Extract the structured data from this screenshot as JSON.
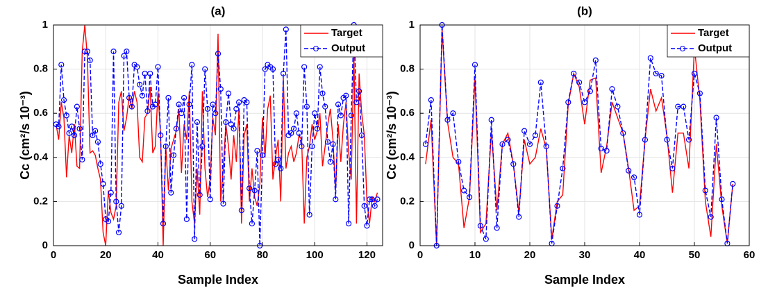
{
  "chart_data": [
    {
      "type": "line",
      "title": "(a)",
      "xlabel": "Sample Index",
      "ylabel": "Cc (cm²/s 10⁻³)",
      "x": [
        1,
        2,
        3,
        4,
        5,
        6,
        7,
        8,
        9,
        10,
        11,
        12,
        13,
        14,
        15,
        16,
        17,
        18,
        19,
        20,
        21,
        22,
        23,
        24,
        25,
        26,
        27,
        28,
        29,
        30,
        31,
        32,
        33,
        34,
        35,
        36,
        37,
        38,
        39,
        40,
        41,
        42,
        43,
        44,
        45,
        46,
        47,
        48,
        49,
        50,
        51,
        52,
        53,
        54,
        55,
        56,
        57,
        58,
        59,
        60,
        61,
        62,
        63,
        64,
        65,
        66,
        67,
        68,
        69,
        70,
        71,
        72,
        73,
        74,
        75,
        76,
        77,
        78,
        79,
        80,
        81,
        82,
        83,
        84,
        85,
        86,
        87,
        88,
        89,
        90,
        91,
        92,
        93,
        94,
        95,
        96,
        97,
        98,
        99,
        100,
        101,
        102,
        103,
        104,
        105,
        106,
        107,
        108,
        109,
        110,
        111,
        112,
        113,
        114,
        115,
        116,
        117,
        118,
        119,
        120,
        121,
        122,
        123,
        124
      ],
      "series": [
        {
          "name": "Target",
          "color": "#ff0000",
          "values": [
            0.55,
            0.48,
            0.65,
            0.58,
            0.31,
            0.5,
            0.42,
            0.55,
            0.36,
            0.35,
            0.88,
            1.0,
            0.85,
            0.42,
            0.43,
            0.41,
            0.35,
            0.3,
            0.06,
            0.0,
            0.25,
            0.15,
            0.12,
            0.18,
            0.65,
            0.7,
            0.52,
            0.58,
            0.68,
            0.62,
            0.7,
            0.65,
            0.4,
            0.38,
            0.58,
            0.6,
            0.72,
            0.42,
            0.45,
            0.7,
            0.5,
            0.0,
            0.45,
            0.25,
            0.44,
            0.48,
            0.52,
            0.62,
            0.33,
            0.55,
            0.48,
            0.7,
            0.2,
            0.1,
            0.35,
            0.14,
            0.7,
            0.35,
            0.22,
            0.3,
            0.58,
            0.5,
            0.96,
            0.2,
            0.35,
            0.55,
            0.45,
            0.3,
            0.5,
            0.38,
            0.62,
            0.1,
            0.5,
            0.55,
            0.2,
            0.35,
            0.22,
            0.18,
            0.28,
            0.58,
            0.4,
            0.62,
            0.68,
            0.3,
            0.4,
            0.48,
            0.2,
            0.76,
            0.35,
            0.42,
            0.45,
            0.38,
            0.42,
            0.5,
            0.48,
            0.1,
            0.4,
            0.45,
            0.55,
            0.48,
            0.52,
            0.6,
            0.36,
            0.45,
            0.55,
            0.62,
            0.48,
            0.25,
            0.55,
            0.38,
            0.55,
            0.65,
            0.42,
            0.3,
            0.88,
            0.1,
            0.78,
            0.6,
            0.5,
            0.2,
            0.1,
            0.22,
            0.2,
            0.24
          ]
        },
        {
          "name": "Output",
          "color": "#0000ff",
          "values": [
            0.55,
            0.54,
            0.82,
            0.66,
            0.59,
            0.51,
            0.54,
            0.5,
            0.63,
            0.53,
            0.39,
            0.88,
            0.88,
            0.84,
            0.5,
            0.52,
            0.47,
            0.37,
            0.28,
            0.12,
            0.11,
            0.24,
            0.88,
            0.2,
            0.06,
            0.18,
            0.86,
            0.88,
            0.67,
            0.63,
            0.82,
            0.81,
            0.73,
            0.68,
            0.78,
            0.61,
            0.78,
            0.63,
            0.64,
            0.81,
            0.5,
            0.1,
            0.45,
            0.67,
            0.24,
            0.41,
            0.53,
            0.64,
            0.6,
            0.67,
            0.12,
            0.64,
            0.82,
            0.03,
            0.56,
            0.23,
            0.45,
            0.8,
            0.62,
            0.21,
            0.64,
            0.6,
            0.87,
            0.71,
            0.19,
            0.56,
            0.69,
            0.55,
            0.53,
            0.62,
            0.65,
            0.16,
            0.66,
            0.65,
            0.26,
            0.1,
            0.25,
            0.43,
            0.0,
            0.41,
            0.8,
            0.82,
            0.81,
            0.8,
            0.37,
            0.39,
            0.35,
            0.78,
            0.98,
            0.5,
            0.51,
            0.53,
            0.6,
            0.51,
            0.45,
            0.81,
            0.63,
            0.14,
            0.45,
            0.6,
            0.53,
            0.81,
            0.69,
            0.63,
            0.47,
            0.38,
            0.46,
            0.21,
            0.64,
            0.59,
            0.67,
            0.68,
            0.1,
            0.59,
            1.0,
            0.65,
            0.7,
            0.5,
            0.18,
            0.09,
            0.21,
            0.21,
            0.18,
            0.21
          ]
        }
      ],
      "xlim": [
        0,
        126
      ],
      "xticks": [
        0,
        20,
        40,
        60,
        80,
        100,
        120
      ],
      "ylim": [
        0,
        1
      ],
      "yticks": [
        0,
        0.2,
        0.4,
        0.6,
        0.8,
        1
      ],
      "grid": true,
      "legend": "top-right"
    },
    {
      "type": "line",
      "title": "(b)",
      "xlabel": "Sample Index",
      "ylabel": "Cc (cm²/s 10⁻³)",
      "x": [
        1,
        2,
        3,
        4,
        5,
        6,
        7,
        8,
        9,
        10,
        11,
        12,
        13,
        14,
        15,
        16,
        17,
        18,
        19,
        20,
        21,
        22,
        23,
        24,
        25,
        26,
        27,
        28,
        29,
        30,
        31,
        32,
        33,
        34,
        35,
        36,
        37,
        38,
        39,
        40,
        41,
        42,
        43,
        44,
        45,
        46,
        47,
        48,
        49,
        50,
        51,
        52,
        53,
        54,
        55,
        56,
        57
      ],
      "series": [
        {
          "name": "Target",
          "color": "#ff0000",
          "values": [
            0.37,
            0.57,
            0.0,
            0.98,
            0.56,
            0.4,
            0.37,
            0.08,
            0.22,
            0.76,
            0.06,
            0.1,
            0.52,
            0.16,
            0.46,
            0.51,
            0.37,
            0.15,
            0.48,
            0.37,
            0.4,
            0.53,
            0.44,
            0.03,
            0.2,
            0.23,
            0.64,
            0.78,
            0.72,
            0.55,
            0.75,
            0.76,
            0.33,
            0.45,
            0.65,
            0.58,
            0.51,
            0.35,
            0.16,
            0.18,
            0.48,
            0.71,
            0.61,
            0.67,
            0.5,
            0.24,
            0.51,
            0.51,
            0.35,
            0.9,
            0.66,
            0.2,
            0.04,
            0.46,
            0.18,
            0.01,
            0.28
          ]
        },
        {
          "name": "Output",
          "color": "#0000ff",
          "values": [
            0.46,
            0.66,
            0.0,
            1.0,
            0.57,
            0.6,
            0.38,
            0.25,
            0.22,
            0.82,
            0.09,
            0.03,
            0.57,
            0.08,
            0.46,
            0.48,
            0.37,
            0.13,
            0.52,
            0.46,
            0.5,
            0.74,
            0.45,
            0.01,
            0.18,
            0.35,
            0.65,
            0.78,
            0.74,
            0.65,
            0.7,
            0.84,
            0.44,
            0.43,
            0.71,
            0.63,
            0.51,
            0.34,
            0.31,
            0.14,
            0.48,
            0.85,
            0.78,
            0.77,
            0.48,
            0.35,
            0.63,
            0.63,
            0.48,
            0.78,
            0.69,
            0.25,
            0.13,
            0.58,
            0.21,
            0.01,
            0.28
          ]
        }
      ],
      "xlim": [
        0,
        60
      ],
      "xticks": [
        0,
        10,
        20,
        30,
        40,
        50,
        60
      ],
      "ylim": [
        0,
        1
      ],
      "yticks": [
        0,
        0.2,
        0.4,
        0.6,
        0.8,
        1
      ],
      "grid": true,
      "legend": "top-right"
    }
  ]
}
